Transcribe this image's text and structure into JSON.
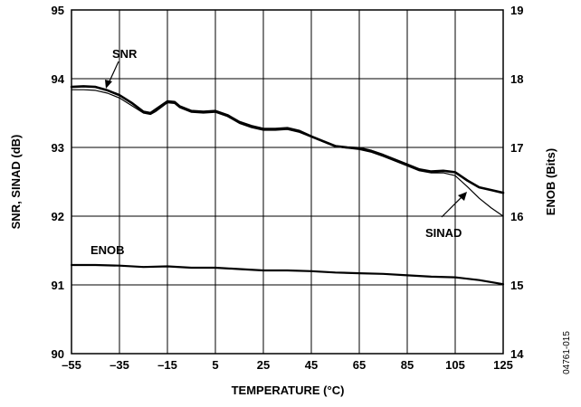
{
  "chart_data": {
    "type": "line",
    "xlabel": "TEMPERATURE (°C)",
    "ylabel": "SNR, SINAD (dB)",
    "y2label": "ENOB (Bits)",
    "xlim": [
      -55,
      125
    ],
    "ylim": [
      90,
      95
    ],
    "y2lim": [
      14,
      19
    ],
    "xticks": [
      "–55",
      "–35",
      "–15",
      "5",
      "25",
      "45",
      "65",
      "85",
      "105",
      "125"
    ],
    "yticks": [
      "90",
      "91",
      "92",
      "93",
      "94",
      "95"
    ],
    "y2ticks": [
      "14",
      "15",
      "16",
      "17",
      "18",
      "19"
    ],
    "grid": true,
    "figure_id": "04761-015",
    "series": [
      {
        "name": "SNR",
        "axis": "left",
        "x": [
          -55,
          -50,
          -45,
          -40,
          -35,
          -30,
          -25,
          -22,
          -20,
          -15,
          -12,
          -10,
          -5,
          0,
          5,
          10,
          15,
          20,
          25,
          30,
          35,
          40,
          45,
          50,
          55,
          60,
          65,
          70,
          75,
          80,
          85,
          90,
          95,
          100,
          105,
          110,
          115,
          120,
          125
        ],
        "y": [
          93.88,
          93.89,
          93.88,
          93.83,
          93.76,
          93.65,
          93.52,
          93.5,
          93.55,
          93.67,
          93.66,
          93.6,
          93.53,
          93.52,
          93.53,
          93.47,
          93.37,
          93.31,
          93.27,
          93.27,
          93.28,
          93.24,
          93.16,
          93.09,
          93.02,
          93.0,
          92.99,
          92.95,
          92.89,
          92.82,
          92.75,
          92.68,
          92.65,
          92.66,
          92.64,
          92.52,
          92.42,
          92.38,
          92.34
        ]
      },
      {
        "name": "SINAD",
        "axis": "left",
        "x": [
          -55,
          -50,
          -45,
          -40,
          -35,
          -30,
          -25,
          -22,
          -20,
          -15,
          -12,
          -10,
          -5,
          0,
          5,
          10,
          15,
          20,
          25,
          30,
          35,
          40,
          45,
          50,
          55,
          60,
          65,
          70,
          75,
          80,
          85,
          90,
          95,
          100,
          105,
          110,
          115,
          120,
          125
        ],
        "y": [
          93.84,
          93.84,
          93.83,
          93.79,
          93.72,
          93.61,
          93.5,
          93.48,
          93.52,
          93.65,
          93.64,
          93.58,
          93.51,
          93.5,
          93.51,
          93.45,
          93.35,
          93.29,
          93.25,
          93.25,
          93.26,
          93.22,
          93.15,
          93.08,
          93.01,
          92.99,
          92.97,
          92.93,
          92.87,
          92.8,
          92.73,
          92.66,
          92.63,
          92.63,
          92.59,
          92.43,
          92.26,
          92.12,
          92.0
        ]
      },
      {
        "name": "ENOB",
        "axis": "right",
        "x": [
          -55,
          -45,
          -35,
          -25,
          -15,
          -5,
          5,
          15,
          25,
          35,
          45,
          55,
          65,
          75,
          85,
          95,
          105,
          115,
          125
        ],
        "y": [
          15.29,
          15.29,
          15.28,
          15.26,
          15.27,
          15.25,
          15.25,
          15.23,
          15.21,
          15.21,
          15.2,
          15.18,
          15.17,
          15.16,
          15.14,
          15.12,
          15.11,
          15.07,
          15.01
        ]
      }
    ],
    "annotations": [
      {
        "text": "SNR"
      },
      {
        "text": "SINAD"
      },
      {
        "text": "ENOB"
      }
    ]
  }
}
